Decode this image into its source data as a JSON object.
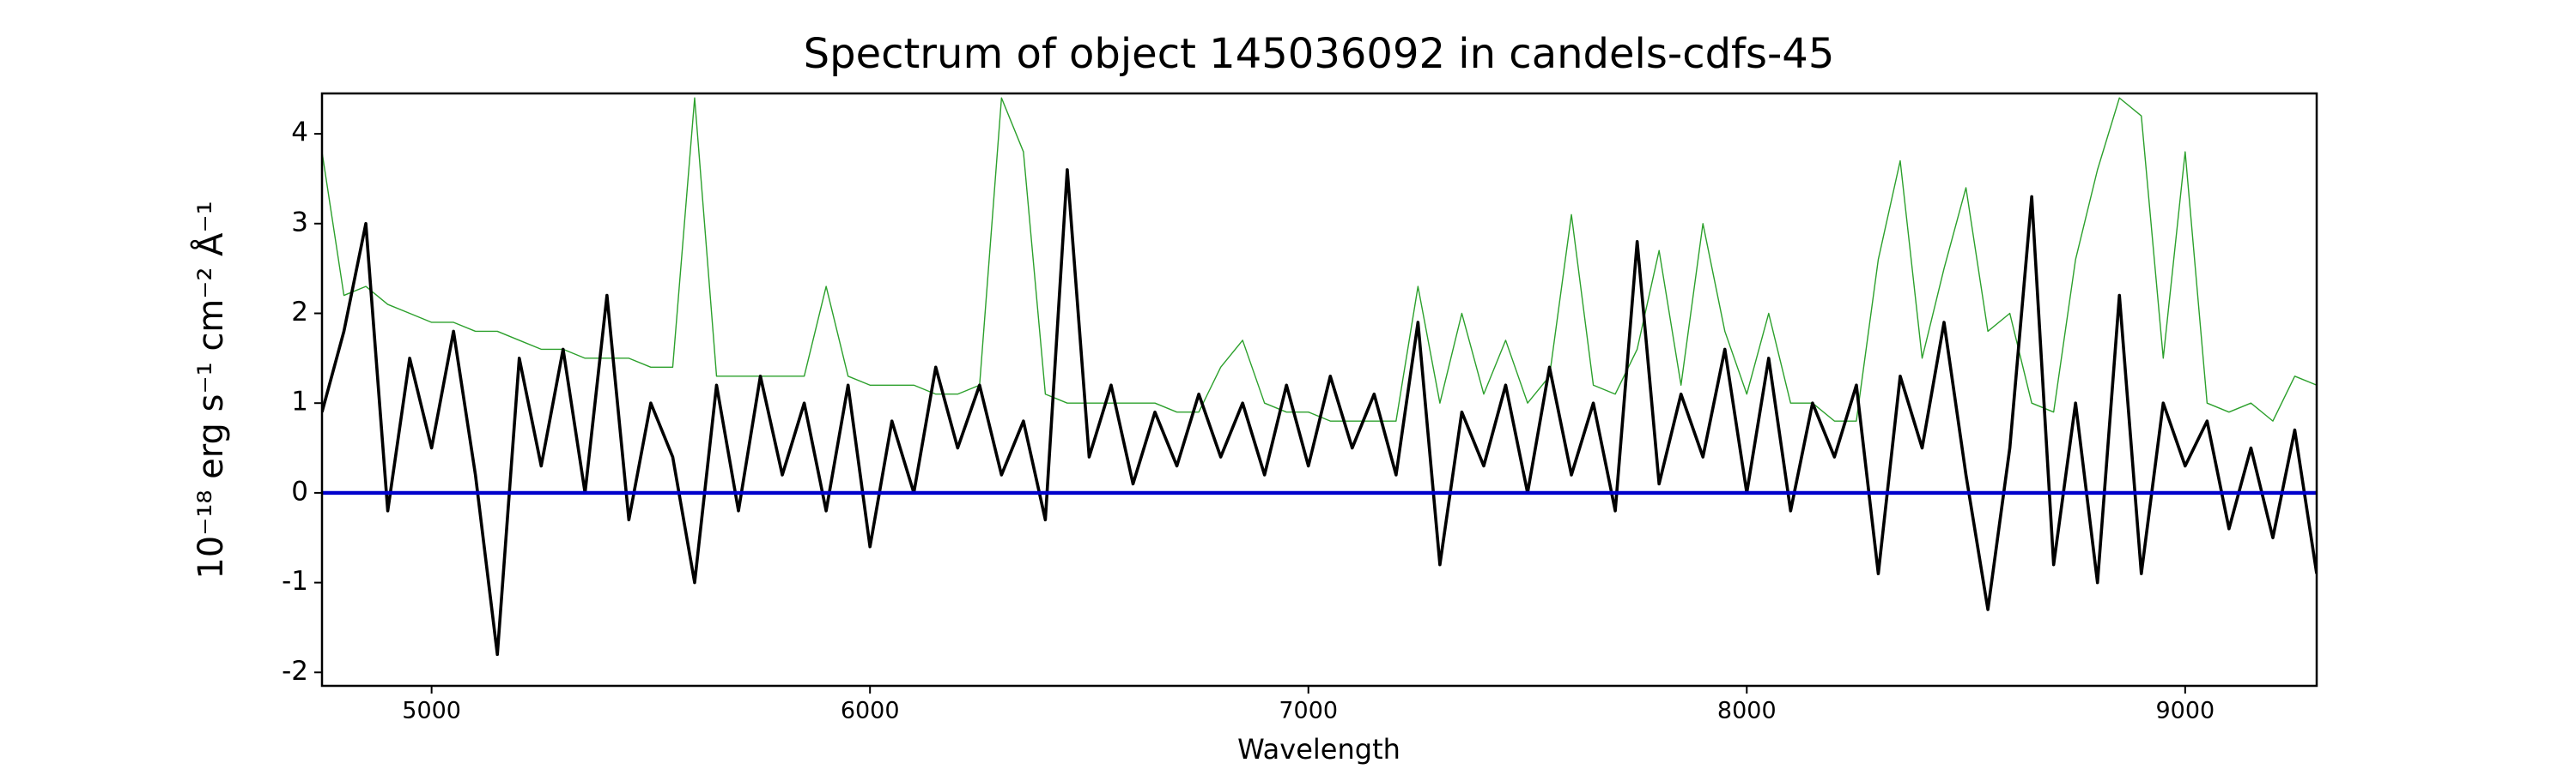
{
  "chart_data": {
    "type": "line",
    "title": "Spectrum of object 145036092 in candels-cdfs-45",
    "xlabel": "Wavelength",
    "ylabel": "10⁻¹⁸ erg s⁻¹ cm⁻² Å⁻¹",
    "xlim": [
      4750,
      9300
    ],
    "ylim": [
      -2.15,
      4.45
    ],
    "xticks": [
      5000,
      6000,
      7000,
      8000,
      9000
    ],
    "yticks": [
      -2,
      -1,
      0,
      1,
      2,
      3,
      4
    ],
    "x": [
      4750,
      4800,
      4850,
      4900,
      4950,
      5000,
      5050,
      5100,
      5150,
      5200,
      5250,
      5300,
      5350,
      5400,
      5450,
      5500,
      5550,
      5600,
      5650,
      5700,
      5750,
      5800,
      5850,
      5900,
      5950,
      6000,
      6050,
      6100,
      6150,
      6200,
      6250,
      6300,
      6350,
      6400,
      6450,
      6500,
      6550,
      6600,
      6650,
      6700,
      6750,
      6800,
      6850,
      6900,
      6950,
      7000,
      7050,
      7100,
      7150,
      7200,
      7250,
      7300,
      7350,
      7400,
      7450,
      7500,
      7550,
      7600,
      7650,
      7700,
      7750,
      7800,
      7850,
      7900,
      7950,
      8000,
      8050,
      8100,
      8150,
      8200,
      8250,
      8300,
      8350,
      8400,
      8450,
      8500,
      8550,
      8600,
      8650,
      8700,
      8750,
      8800,
      8850,
      8900,
      8950,
      9000,
      9050,
      9100,
      9150,
      9200,
      9250,
      9300
    ],
    "series": [
      {
        "color": "#2ca02c",
        "values": [
          3.8,
          2.2,
          2.3,
          2.1,
          2.0,
          1.9,
          1.9,
          1.8,
          1.8,
          1.7,
          1.6,
          1.6,
          1.5,
          1.5,
          1.5,
          1.4,
          1.4,
          4.4,
          1.3,
          1.3,
          1.3,
          1.3,
          1.3,
          2.3,
          1.3,
          1.2,
          1.2,
          1.2,
          1.1,
          1.1,
          1.2,
          4.4,
          3.8,
          1.1,
          1.0,
          1.0,
          1.0,
          1.0,
          1.0,
          0.9,
          0.9,
          1.4,
          1.7,
          1.0,
          0.9,
          0.9,
          0.8,
          0.8,
          0.8,
          0.8,
          2.3,
          1.0,
          2.0,
          1.1,
          1.7,
          1.0,
          1.3,
          3.1,
          1.2,
          1.1,
          1.6,
          2.7,
          1.2,
          3.0,
          1.8,
          1.1,
          2.0,
          1.0,
          1.0,
          0.8,
          0.8,
          2.6,
          3.7,
          1.5,
          2.5,
          3.4,
          1.8,
          2.0,
          1.0,
          0.9,
          2.6,
          3.6,
          4.4,
          4.2,
          1.5,
          3.8,
          1.0,
          0.9,
          1.0,
          0.8,
          1.3,
          1.2
        ]
      },
      {
        "color": "#000000",
        "values": [
          0.9,
          1.8,
          3.0,
          -0.2,
          1.5,
          0.5,
          1.8,
          0.2,
          -1.8,
          1.5,
          0.3,
          1.6,
          0.0,
          2.2,
          -0.3,
          1.0,
          0.4,
          -1.0,
          1.2,
          -0.2,
          1.3,
          0.2,
          1.0,
          -0.2,
          1.2,
          -0.6,
          0.8,
          0.0,
          1.4,
          0.5,
          1.2,
          0.2,
          0.8,
          -0.3,
          3.6,
          0.4,
          1.2,
          0.1,
          0.9,
          0.3,
          1.1,
          0.4,
          1.0,
          0.2,
          1.2,
          0.3,
          1.3,
          0.5,
          1.1,
          0.2,
          1.9,
          -0.8,
          0.9,
          0.3,
          1.2,
          0.0,
          1.4,
          0.2,
          1.0,
          -0.2,
          2.8,
          0.1,
          1.1,
          0.4,
          1.6,
          0.0,
          1.5,
          -0.2,
          1.0,
          0.4,
          1.2,
          -0.9,
          1.3,
          0.5,
          1.9,
          0.2,
          -1.3,
          0.5,
          3.3,
          -0.8,
          1.0,
          -1.0,
          2.2,
          -0.9,
          1.0,
          0.3,
          0.8,
          -0.4,
          0.5,
          -0.5,
          0.7,
          -0.9
        ]
      },
      {
        "color": "#0000cc",
        "values": [
          0,
          0,
          0,
          0,
          0,
          0,
          0,
          0,
          0,
          0,
          0,
          0,
          0,
          0,
          0,
          0,
          0,
          0,
          0,
          0,
          0,
          0,
          0,
          0,
          0,
          0,
          0,
          0,
          0,
          0,
          0,
          0,
          0,
          0,
          0,
          0,
          0,
          0,
          0,
          0,
          0,
          0,
          0,
          0,
          0,
          0,
          0,
          0,
          0,
          0,
          0,
          0,
          0,
          0,
          0,
          0,
          0,
          0,
          0,
          0,
          0,
          0,
          0,
          0,
          0,
          0,
          0,
          0,
          0,
          0,
          0,
          0,
          0,
          0,
          0,
          0,
          0,
          0,
          0,
          0,
          0,
          0,
          0,
          0,
          0,
          0,
          0,
          0,
          0,
          0,
          0,
          0
        ]
      }
    ]
  }
}
